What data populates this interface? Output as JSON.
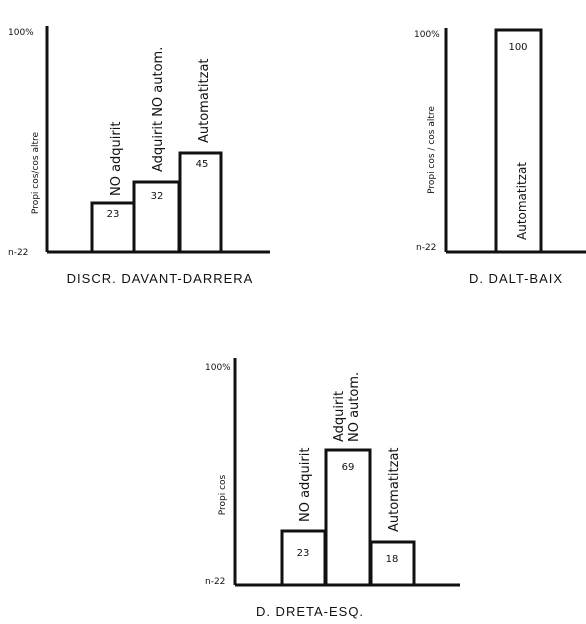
{
  "chart_data": [
    {
      "type": "bar",
      "title": "DISCR. DAVANT-DARRERA",
      "ylabel": "Propi cos/cos altre",
      "y_top_label": "100%",
      "y_bottom_label": "n-22",
      "ylim": [
        0,
        100
      ],
      "categories": [
        "NO adquirit",
        "Adquirit NO autom.",
        "Automatitzat"
      ],
      "values": [
        23,
        32,
        45
      ]
    },
    {
      "type": "bar",
      "title": "D. DALT-BAIX",
      "ylabel": "Propi cos / cos altre",
      "y_top_label": "100%",
      "y_bottom_label": "n-22",
      "ylim": [
        0,
        100
      ],
      "categories": [
        "Automatitzat"
      ],
      "values": [
        100
      ]
    },
    {
      "type": "bar",
      "title": "D. DRETA-ESQ.",
      "ylabel": "Propi cos",
      "y_top_label": "100%",
      "y_bottom_label": "n-22",
      "ylim": [
        0,
        100
      ],
      "categories": [
        "NO adquirit",
        "Adquirit NO autom.",
        "Automatitzat"
      ],
      "values": [
        23,
        69,
        18
      ]
    }
  ]
}
